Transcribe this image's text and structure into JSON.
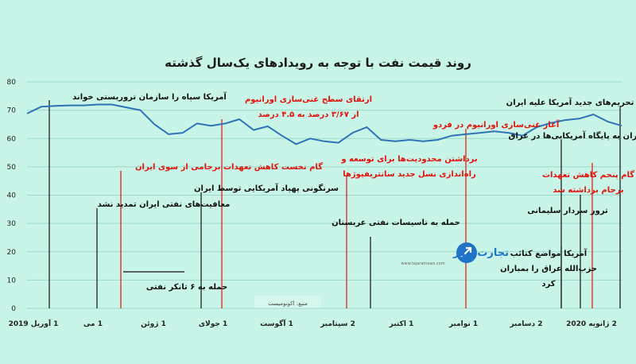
{
  "chart_data": {
    "type": "line",
    "title": "روند قیمت نفت با توجه به رویدادهای یک‌سال گذشته",
    "ylim": [
      0,
      80
    ],
    "yticks": [
      0,
      10,
      20,
      30,
      40,
      50,
      60,
      70,
      80
    ],
    "x_tick_labels": [
      "1 آوریل 2019",
      "1 می",
      "1 ژوئن",
      "1 جولای",
      "1 آگوست",
      "2 سپتامبر",
      "1 اکتبر",
      "1 نوامبر",
      "2 دسامبر",
      "2 ژانویه 2020"
    ],
    "series": [
      {
        "values": [
          68.8,
          71.2,
          71.5,
          71.7,
          71.7,
          72.0,
          72.0,
          71.0,
          70.0,
          65.0,
          61.5,
          62.0,
          65.3,
          64.5,
          65.3,
          66.8,
          63.0,
          64.3,
          61.0,
          58.0,
          60.0,
          59.0,
          58.5,
          62.0,
          64.0,
          59.5,
          59.0,
          59.5,
          59.0,
          59.5,
          61.0,
          61.5,
          62.0,
          62.5,
          62.0,
          61.0,
          64.0,
          65.5,
          66.5,
          67.0,
          68.5,
          66.0,
          64.5
        ]
      }
    ]
  },
  "source_label": "منبع: اکونومیست",
  "logo": {
    "name": "تجارت نیوز",
    "site": "www.tejaratnews.com",
    "accent_blue": "#1f73c8",
    "accent_red": "#e01f1f"
  },
  "colors": {
    "background": "#c9f5e9",
    "line": "#2e74b5",
    "annotation_red": "#e3120b",
    "annotation_black": "#111111"
  },
  "annotations": [
    {
      "lines": [
        "آمریکا سپاه را سازمان تروریستی خواند"
      ],
      "color": "black",
      "x": 0.9
    },
    {
      "lines": [
        "گام نخست کاهش تعهدات برجامی از سوی ایران"
      ],
      "color": "red",
      "x": 4.3
    },
    {
      "lines": [
        "معافیت‌های نفتی ایران تمدید نشد"
      ],
      "color": "black",
      "x": 3.4
    },
    {
      "lines": [
        "حمله به ۶ تانکر نفتی"
      ],
      "color": "black",
      "x": 7.0
    },
    {
      "lines": [
        "سرنگونی پهپاد آمریکایی توسط ایران"
      ],
      "color": "black",
      "x": 9.1
    },
    {
      "lines": [
        "ارتقای سطح غنی‌سازی اورانیوم",
        "از ۳/۶۷ درصد به ۴.۵ درصد"
      ],
      "color": "red",
      "x": 10.0
    },
    {
      "lines": [
        "برداشتن محدودیت‌ها برای توسعه و",
        "راه‌اندازی نسل جدید سانتریفیوژها"
      ],
      "color": "red",
      "x": 16.0
    },
    {
      "lines": [
        "حمله به تاسیسات نفتی عربستان"
      ],
      "color": "black",
      "x": 17.4
    },
    {
      "lines": [
        "آغاز غنی‌سازی اورانیوم در فردو"
      ],
      "color": "red",
      "x": 22.4
    },
    {
      "lines": [
        "حمله ایران به پایگاه آمریکایی‌ها در عراق"
      ],
      "color": "black",
      "x": 29.5
    },
    {
      "lines": [
        "آمریکا مواضع کتائب",
        "حزب‌الله عراق را بمباران",
        "کرد"
      ],
      "color": "black",
      "x": 27.0
    },
    {
      "lines": [
        "ترور سردار سلیمانی"
      ],
      "color": "black",
      "x": 28.4
    },
    {
      "lines": [
        "گام پنجم کاهش تعهدات",
        "برجام برداشته شد"
      ],
      "color": "red",
      "x": 28.7
    },
    {
      "lines": [
        "تحریم‌های جدید آمریکا علیه ایران"
      ],
      "color": "black",
      "x": 29.8
    }
  ]
}
